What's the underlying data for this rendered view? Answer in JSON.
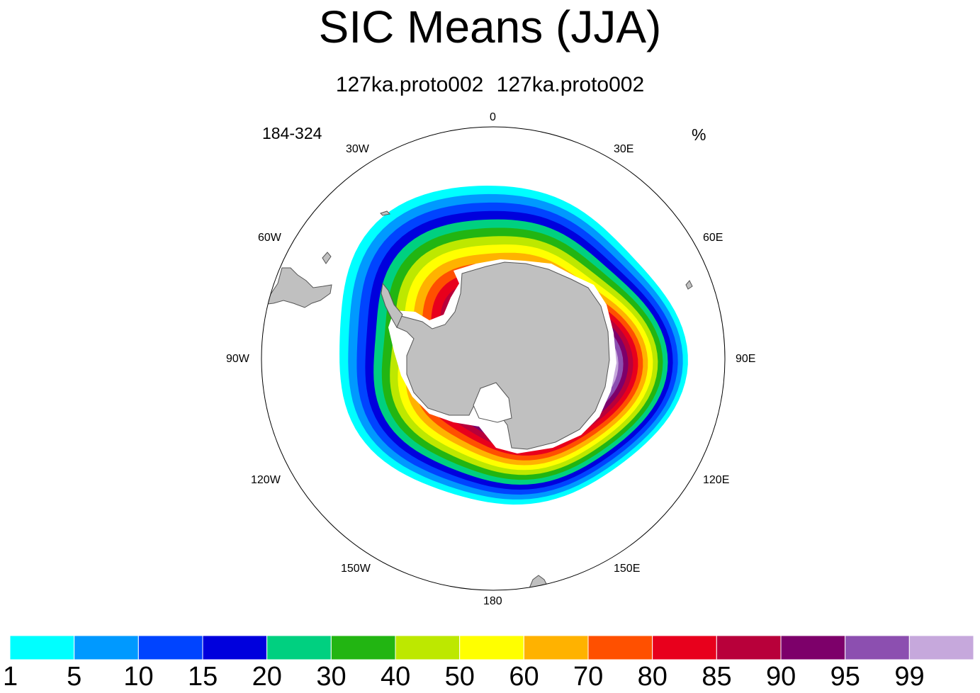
{
  "title": "SIC Means (JJA)",
  "subtitle": "127ka.proto002  127ka.proto002",
  "left_string": "184-324",
  "right_string": "%",
  "longitude_labels": {
    "lon_0": "0",
    "lon_30e": "30E",
    "lon_60e": "60E",
    "lon_90e": "90E",
    "lon_120e": "120E",
    "lon_150e": "150E",
    "lon_180": "180",
    "lon_150w": "150W",
    "lon_120w": "120W",
    "lon_90w": "90W",
    "lon_60w": "60W",
    "lon_30w": "30W"
  },
  "colorbar": {
    "labels": [
      "1",
      "5",
      "10",
      "15",
      "20",
      "30",
      "40",
      "50",
      "60",
      "70",
      "80",
      "85",
      "90",
      "95",
      "99"
    ],
    "colors": [
      "#00ffff",
      "#0099ff",
      "#0044ff",
      "#0000dd",
      "#00d080",
      "#22b512",
      "#bde800",
      "#ffff00",
      "#ffb200",
      "#ff5000",
      "#e8001c",
      "#b8003a",
      "#7d006a",
      "#8c4fb0",
      "#c6a8dc"
    ]
  },
  "map": {
    "projection": "polar stereographic (south)",
    "land_color": "#c0c0c0",
    "ice_shelf_color": "#ffffff"
  }
}
